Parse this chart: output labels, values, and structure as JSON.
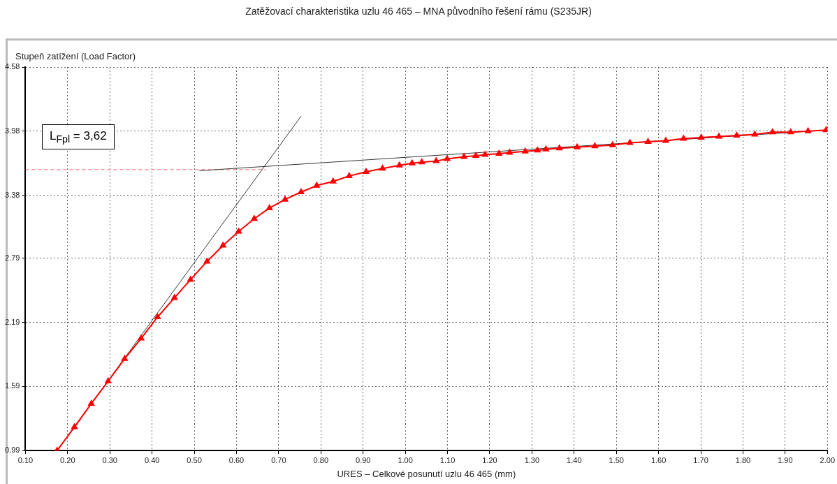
{
  "chart_data": {
    "type": "line",
    "title": "Zatěžovací charakteristika uzlu 46 465 – MNA původního řešení rámu (S235JR)",
    "xlabel": "URES – Celkové posunutí uzlu 46 465 (mm)",
    "ylabel": "Stupeň zatížení (Load Factor)",
    "annotations": [
      "L$_{Fpl}$ = 3,62"
    ],
    "xlim": [
      0.1,
      2.0
    ],
    "xticks": [
      {
        "value": 0.1,
        "label": "0.10"
      },
      {
        "value": 0.2,
        "label": "0.20"
      },
      {
        "value": 0.3,
        "label": "0.30"
      },
      {
        "value": 0.4,
        "label": "0.40"
      },
      {
        "value": 0.5,
        "label": "0.50"
      },
      {
        "value": 0.6,
        "label": "0.60"
      },
      {
        "value": 0.7,
        "label": "0.70"
      },
      {
        "value": 0.8,
        "label": "0.80"
      },
      {
        "value": 0.9,
        "label": "0.90"
      },
      {
        "value": 1.0,
        "label": "1.00"
      },
      {
        "value": 1.1,
        "label": "1.10"
      },
      {
        "value": 1.2,
        "label": "1.20"
      },
      {
        "value": 1.3,
        "label": "1.30"
      },
      {
        "value": 1.4,
        "label": "1.40"
      },
      {
        "value": 1.5,
        "label": "1.50"
      },
      {
        "value": 1.6,
        "label": "1.60"
      },
      {
        "value": 1.7,
        "label": "1.70"
      },
      {
        "value": 1.8,
        "label": "1.80"
      },
      {
        "value": 1.9,
        "label": "1.90"
      },
      {
        "value": 2.0,
        "label": "2.00"
      }
    ],
    "ylim": [
      0.99,
      4.58
    ],
    "yticks": [
      0.99,
      1.59,
      2.19,
      2.79,
      3.38,
      3.98,
      4.58
    ],
    "grid": true,
    "legend": false,
    "series": [
      {
        "color": "#ff0000",
        "marker": "triangle",
        "x": [
          0.175,
          0.216,
          0.256,
          0.296,
          0.335,
          0.374,
          0.413,
          0.453,
          0.491,
          0.53,
          0.568,
          0.605,
          0.642,
          0.678,
          0.715,
          0.753,
          0.79,
          0.829,
          0.867,
          0.907,
          0.946,
          0.986,
          1.016,
          1.039,
          1.073,
          1.099,
          1.139,
          1.167,
          1.189,
          1.222,
          1.247,
          1.284,
          1.313,
          1.333,
          1.365,
          1.407,
          1.449,
          1.491,
          1.532,
          1.575,
          1.617,
          1.659,
          1.701,
          1.743,
          1.785,
          1.828,
          1.87,
          1.913,
          1.954,
          1.997
        ],
        "values": [
          0.99,
          1.21,
          1.43,
          1.64,
          1.85,
          2.04,
          2.24,
          2.42,
          2.59,
          2.76,
          2.91,
          3.04,
          3.16,
          3.26,
          3.34,
          3.41,
          3.47,
          3.51,
          3.56,
          3.6,
          3.63,
          3.66,
          3.68,
          3.69,
          3.7,
          3.72,
          3.74,
          3.75,
          3.76,
          3.77,
          3.78,
          3.79,
          3.8,
          3.81,
          3.82,
          3.83,
          3.84,
          3.85,
          3.87,
          3.88,
          3.89,
          3.91,
          3.92,
          3.93,
          3.94,
          3.95,
          3.97,
          3.97,
          3.98,
          3.99
        ]
      },
      {
        "color": "#333333",
        "marker": "none",
        "x": [
          0.175,
          0.753
        ],
        "values": [
          0.99,
          4.12
        ]
      },
      {
        "color": "#333333",
        "marker": "none",
        "x": [
          0.512,
          2.0
        ],
        "values": [
          3.61,
          3.99
        ]
      },
      {
        "color": "#ff6060",
        "marker": "none",
        "line_style": "dashed",
        "x": [
          0.1,
          0.67
        ],
        "values": [
          3.62,
          3.62
        ]
      }
    ]
  }
}
